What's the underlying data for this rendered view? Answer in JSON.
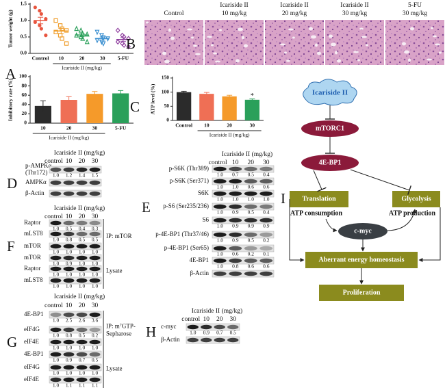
{
  "chart_data": [
    {
      "type": "dot",
      "panel": "A",
      "ylabel": "Tumor weight (g)",
      "xlabel": "Icariside II (mg/kg)",
      "categories": [
        "Control",
        "10",
        "20",
        "30",
        "5-FU"
      ],
      "colors": [
        "#e8553f",
        "#f0a030",
        "#2aa05a",
        "#3a8fd0",
        "#9040a0"
      ],
      "points": [
        [
          1.4,
          1.3,
          1.2,
          1.05,
          0.95,
          0.85,
          0.75,
          0.55
        ],
        [
          1.0,
          0.85,
          0.75,
          0.7,
          0.65,
          0.55,
          0.45,
          0.3
        ],
        [
          0.75,
          0.7,
          0.6,
          0.58,
          0.55,
          0.5,
          0.45,
          0.35
        ],
        [
          0.65,
          0.55,
          0.48,
          0.45,
          0.4,
          0.35,
          0.3
        ],
        [
          0.7,
          0.55,
          0.5,
          0.45,
          0.35,
          0.3,
          0.25,
          0.2
        ]
      ],
      "means": [
        1.0,
        0.68,
        0.56,
        0.45,
        0.42
      ],
      "errors": [
        0.1,
        0.08,
        0.05,
        0.05,
        0.06
      ],
      "ylim": [
        0,
        1.5
      ],
      "yticks": [
        {
          "value": 0,
          "label": "0.0"
        },
        {
          "value": 0.5,
          "label": "0.5"
        },
        {
          "value": 1,
          "label": "1.0"
        },
        {
          "value": 1.5,
          "label": "1.5"
        }
      ]
    },
    {
      "type": "bar",
      "ylabel": "Inhibitory rate (%)",
      "xlabel": "Icariside II (mg/kg)",
      "categories": [
        "10",
        "20",
        "30",
        "5-FU"
      ],
      "colors": [
        "#2b2b2b",
        "#ef6f55",
        "#f59a2a",
        "#2aa05a"
      ],
      "values": [
        37,
        50,
        63,
        64
      ],
      "errors": [
        11,
        7,
        5,
        6
      ],
      "ylim": [
        0,
        100
      ],
      "yticks": [
        0,
        20,
        40,
        60,
        80,
        100
      ]
    },
    {
      "type": "bar",
      "panel": "C",
      "ylabel": "ATP level (%)",
      "xlabel": "Icariside II (mg/kg)",
      "categories": [
        "Control",
        "10",
        "20",
        "30"
      ],
      "colors": [
        "#2b2b2b",
        "#ef6f55",
        "#f59a2a",
        "#2aa05a"
      ],
      "values": [
        100,
        94,
        85,
        73
      ],
      "errors": [
        3,
        5,
        4,
        3
      ],
      "annotations": [
        {
          "text": "*",
          "category": "30"
        }
      ],
      "ylim": [
        0,
        150
      ],
      "yticks": [
        0,
        50,
        100,
        150
      ]
    }
  ],
  "histology": {
    "panel": "B",
    "images": [
      {
        "label": [
          "Control"
        ]
      },
      {
        "label": [
          "Icariside II",
          "10 mg/kg"
        ]
      },
      {
        "label": [
          "Icariside II",
          "20 mg/kg"
        ]
      },
      {
        "label": [
          "Icariside II",
          "30 mg/kg"
        ]
      },
      {
        "label": [
          "5-FU",
          "30 mg/kg"
        ]
      }
    ]
  },
  "blots": [
    {
      "panel": "D",
      "treatment": "Icariside II  (mg/kg)",
      "lanes": [
        "control",
        "10",
        "20",
        "30"
      ],
      "sections": [
        {
          "rows": [
            {
              "label": [
                "p-AMPKα",
                "(Thr172)"
              ],
              "values": [
                1.0,
                1.2,
                1.4,
                1.5
              ],
              "value_labels": [
                "1.0",
                "1.2",
                "1.4",
                "1.5"
              ]
            },
            {
              "label": [
                "AMPKα"
              ]
            },
            {
              "label": [
                "β-Actin"
              ]
            }
          ]
        }
      ]
    },
    {
      "panel": "E",
      "treatment": "Icariside II  (mg/kg)",
      "lanes": [
        "control",
        "10",
        "20",
        "30"
      ],
      "sections": [
        {
          "rows": [
            {
              "label": [
                "p-S6K (Thr389)"
              ],
              "values": [
                1.0,
                0.7,
                0.5,
                0.4
              ],
              "value_labels": [
                "1.0",
                "0.7",
                "0.5",
                "0.4"
              ]
            },
            {
              "label": [
                "p-S6K (Ser371)"
              ],
              "values": [
                1.0,
                1.0,
                0.6,
                0.6
              ],
              "value_labels": [
                "1.0",
                "1.0",
                "0.6",
                "0.6"
              ]
            },
            {
              "label": [
                "S6K"
              ],
              "values": [
                1.0,
                1.0,
                1.0,
                1.0
              ],
              "value_labels": [
                "1.0",
                "1.0",
                "1.0",
                "1.0"
              ]
            },
            {
              "label": [
                "p-S6 (Ser235/236)"
              ],
              "values": [
                1.0,
                0.9,
                0.5,
                0.4
              ],
              "value_labels": [
                "1.0",
                "0.9",
                "0.5",
                "0.4"
              ]
            },
            {
              "label": [
                "S6"
              ],
              "values": [
                1.0,
                0.9,
                0.9,
                0.9
              ],
              "value_labels": [
                "1.0",
                "0.9",
                "0.9",
                "0.9"
              ]
            },
            {
              "label": [
                "p-4E-BP1 (Thr37/46)"
              ],
              "values": [
                1.0,
                0.9,
                0.5,
                0.2
              ],
              "value_labels": [
                "1.0",
                "0.9",
                "0.5",
                "0.2"
              ]
            },
            {
              "label": [
                "p-4E-BP1 (Ser65)"
              ],
              "values": [
                1.0,
                0.6,
                0.2,
                0.1
              ],
              "value_labels": [
                "1.0",
                "0.6",
                "0.2",
                "0.1"
              ]
            },
            {
              "label": [
                "4E-BP1"
              ],
              "values": [
                1.0,
                0.8,
                0.6,
                0.6
              ],
              "value_labels": [
                "1.0",
                "0.8",
                "0.6",
                "0.6"
              ]
            },
            {
              "label": [
                "β-Actin"
              ]
            }
          ]
        }
      ]
    },
    {
      "panel": "F",
      "treatment": "Icariside II  (mg/kg)",
      "lanes": [
        "control",
        "10",
        "20",
        "30"
      ],
      "sections": [
        {
          "label": [
            "IP: mTOR"
          ],
          "rows": [
            {
              "label": [
                "Raptor"
              ],
              "values": [
                1.0,
                0.5,
                0.4,
                0.3
              ],
              "value_labels": [
                "1.0",
                "0.5",
                "0.4",
                "0.3"
              ]
            },
            {
              "label": [
                "mLST8"
              ],
              "values": [
                1.0,
                0.8,
                0.5,
                0.5
              ],
              "value_labels": [
                "1.0",
                "0.8",
                "0.5",
                "0.5"
              ]
            },
            {
              "label": [
                "mTOR"
              ],
              "values": [
                1.0,
                1.0,
                1.0,
                1.0
              ],
              "value_labels": [
                "1.0",
                "1.0",
                "1.0",
                "1.0"
              ]
            }
          ]
        },
        {
          "label": [
            "Lysate"
          ],
          "rows": [
            {
              "label": [
                "mTOR"
              ],
              "values": [
                1.0,
                0.9,
                1.0,
                1.0
              ],
              "value_labels": [
                "1.0",
                "0.9",
                "1.0",
                "1.0"
              ]
            },
            {
              "label": [
                "Raptor"
              ],
              "values": [
                1.0,
                1.0,
                1.0,
                1.0
              ],
              "value_labels": [
                "1.0",
                "1.0",
                "1.0",
                "1.0"
              ]
            },
            {
              "label": [
                "mLST8"
              ],
              "values": [
                1.0,
                1.0,
                1.0,
                1.0
              ],
              "value_labels": [
                "1.0",
                "1.0",
                "1.0",
                "1.0"
              ]
            }
          ]
        }
      ]
    },
    {
      "panel": "G",
      "treatment": "Icariside II  (mg/kg)",
      "lanes": [
        "control",
        "10",
        "20",
        "30"
      ],
      "sections": [
        {
          "label": [
            "IP: m⁷GTP-",
            "Sepharose"
          ],
          "rows": [
            {
              "label": [
                "4E-BP1"
              ],
              "values": [
                1.0,
                2.5,
                2.6,
                3.6
              ],
              "value_labels": [
                "1.0",
                "2.5",
                "2.6",
                "3.6"
              ]
            },
            {
              "label": [
                "eIF4G"
              ],
              "values": [
                1.0,
                0.8,
                0.5,
                0.2
              ],
              "value_labels": [
                "1.0",
                "0.8",
                "0.5",
                "0.2"
              ]
            },
            {
              "label": [
                "eIF4E"
              ],
              "values": [
                1.0,
                1.0,
                1.0,
                1.0
              ],
              "value_labels": [
                "1.0",
                "1.0",
                "1.0",
                "1.0"
              ]
            }
          ]
        },
        {
          "label": [
            "Lysate"
          ],
          "rows": [
            {
              "label": [
                "4E-BP1"
              ],
              "values": [
                1.0,
                0.9,
                0.7,
                0.5
              ],
              "value_labels": [
                "1.0",
                "0.9",
                "0.7",
                "0.5"
              ]
            },
            {
              "label": [
                "eIF4G"
              ],
              "values": [
                1.0,
                1.0,
                1.0,
                1.0
              ],
              "value_labels": [
                "1.0",
                "1.0",
                "1.0",
                "1.0"
              ]
            },
            {
              "label": [
                "eIF4E"
              ],
              "values": [
                1.0,
                1.1,
                1.1,
                1.1
              ],
              "value_labels": [
                "1.0",
                "1.1",
                "1.1",
                "1.1"
              ]
            }
          ]
        }
      ]
    },
    {
      "panel": "H",
      "treatment": "Icariside II  (mg/kg)",
      "lanes": [
        "control",
        "10",
        "20",
        "30"
      ],
      "sections": [
        {
          "rows": [
            {
              "label": [
                "c-myc"
              ],
              "values": [
                1.0,
                0.9,
                0.7,
                0.5
              ],
              "value_labels": [
                "1.0",
                "0.9",
                "0.7",
                "0.5"
              ]
            },
            {
              "label": [
                "β-Actin"
              ]
            }
          ]
        }
      ]
    }
  ],
  "panel_a_letter": "A",
  "flowchart": {
    "panel": "I",
    "nodes": [
      {
        "label": "Icariside II"
      },
      {
        "label": "mTORC1"
      },
      {
        "label": "4E-BP1"
      },
      {
        "label": "Translation"
      },
      {
        "label": "Glycolysis"
      },
      {
        "label": "c-myc"
      },
      {
        "label": "Aberrant energy homeostasis"
      },
      {
        "label": "Proliferation"
      }
    ],
    "notes": [
      "ATP consumption",
      "ATP production"
    ]
  }
}
